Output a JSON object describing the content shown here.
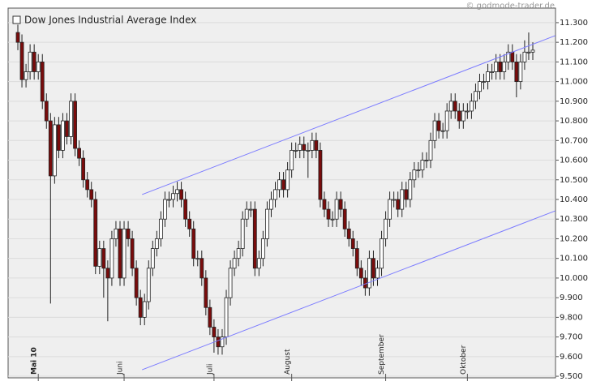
{
  "chart_data": {
    "type": "candlestick",
    "title": "Dow Jones Industrial Average Index",
    "source": "© godmode-trader.de",
    "categories": [
      null,
      null,
      null,
      null,
      null,
      "Mai 10",
      null,
      null,
      null,
      null,
      null,
      null,
      null,
      null,
      null,
      null,
      null,
      null,
      null,
      null,
      null,
      null,
      null,
      null,
      null,
      null,
      "Juni",
      null,
      null,
      null,
      null,
      null,
      null,
      null,
      null,
      null,
      null,
      null,
      null,
      null,
      null,
      null,
      null,
      null,
      null,
      null,
      null,
      null,
      "Juli",
      null,
      null,
      null,
      null,
      null,
      null,
      null,
      null,
      null,
      null,
      null,
      null,
      null,
      null,
      null,
      null,
      null,
      null,
      "August",
      null,
      null,
      null,
      null,
      null,
      null,
      null,
      null,
      null,
      null,
      null,
      null,
      null,
      null,
      null,
      null,
      null,
      null,
      null,
      null,
      null,
      null,
      "September",
      null,
      null,
      null,
      null,
      null,
      null,
      null,
      null,
      null,
      null,
      null,
      null,
      null,
      null,
      null,
      null,
      null,
      null,
      null,
      "Oktober",
      null,
      null,
      null,
      null,
      null,
      null,
      null,
      null,
      null,
      null,
      null,
      null,
      null,
      null,
      null,
      null
    ],
    "open": [
      11250,
      11200,
      11010,
      11050,
      11150,
      11050,
      11100,
      10900,
      10800,
      10520,
      10780,
      10650,
      10800,
      10720,
      10900,
      10660,
      10610,
      10500,
      10450,
      10400,
      10060,
      10150,
      10050,
      10000,
      10200,
      10250,
      10000,
      10250,
      10200,
      10050,
      9900,
      9800,
      9880,
      10050,
      10150,
      10200,
      10300,
      10400,
      10400,
      10430,
      10450,
      10400,
      10300,
      10250,
      10100,
      10100,
      10000,
      9850,
      9750,
      9700,
      9650,
      9700,
      9900,
      10050,
      10100,
      10150,
      10300,
      10350,
      10350,
      10050,
      10100,
      10200,
      10350,
      10400,
      10450,
      10500,
      10450,
      10550,
      10650,
      10650,
      10680,
      10650,
      10650,
      10700,
      10650,
      10400,
      10350,
      10300,
      10300,
      10400,
      10350,
      10250,
      10200,
      10150,
      10050,
      10000,
      9950,
      10100,
      10000,
      10050,
      10200,
      10300,
      10400,
      10400,
      10350,
      10450,
      10400,
      10500,
      10550,
      10550,
      10600,
      10600,
      10700,
      10800,
      10750,
      10750,
      10850,
      10900,
      10850,
      10800,
      10850,
      10850,
      10900,
      10950,
      11000,
      11000,
      11050,
      11050,
      11100,
      11050,
      11100,
      11150,
      11100,
      11000,
      11100,
      11150,
      11150
    ],
    "high": [
      11290,
      11240,
      11090,
      11190,
      11190,
      11140,
      11140,
      10940,
      10840,
      10820,
      10820,
      10840,
      10840,
      10940,
      10940,
      10700,
      10650,
      10540,
      10490,
      10440,
      10190,
      10190,
      10090,
      10240,
      10290,
      10290,
      10290,
      10290,
      10240,
      10090,
      9940,
      9920,
      10090,
      10190,
      10240,
      10340,
      10440,
      10440,
      10470,
      10490,
      10490,
      10440,
      10340,
      10290,
      10140,
      10140,
      10040,
      9890,
      9790,
      9740,
      9740,
      9940,
      10090,
      10140,
      10190,
      10340,
      10390,
      10390,
      10390,
      10140,
      10240,
      10390,
      10440,
      10490,
      10540,
      10540,
      10590,
      10690,
      10690,
      10720,
      10720,
      10690,
      10740,
      10740,
      10690,
      10440,
      10390,
      10340,
      10440,
      10440,
      10390,
      10290,
      10240,
      10190,
      10090,
      10040,
      10140,
      10140,
      10090,
      10240,
      10340,
      10440,
      10440,
      10440,
      10490,
      10490,
      10540,
      10590,
      10590,
      10640,
      10640,
      10740,
      10840,
      10840,
      10790,
      10890,
      10940,
      10940,
      10890,
      10890,
      10890,
      10940,
      10990,
      11040,
      11040,
      11090,
      11090,
      11140,
      11140,
      11140,
      11190,
      11190,
      11140,
      11140,
      11210,
      11250,
      11200
    ],
    "low": [
      11160,
      10970,
      10970,
      11010,
      11010,
      11010,
      10860,
      10760,
      9870,
      10480,
      10610,
      10610,
      10680,
      10680,
      10620,
      10570,
      10460,
      10410,
      10360,
      10020,
      10020,
      9900,
      9780,
      9960,
      10160,
      9960,
      9960,
      10160,
      10010,
      9860,
      9760,
      9760,
      9840,
      10010,
      10110,
      10160,
      10260,
      10360,
      10360,
      10390,
      10360,
      10260,
      10210,
      10060,
      10060,
      9960,
      9810,
      9710,
      9620,
      9610,
      9610,
      9660,
      9860,
      10010,
      10060,
      10110,
      10260,
      10310,
      10010,
      10010,
      10060,
      10160,
      10310,
      10360,
      10410,
      10410,
      10410,
      10510,
      10610,
      10610,
      10610,
      10510,
      10610,
      10610,
      10360,
      10310,
      10260,
      10260,
      10260,
      10310,
      10210,
      10160,
      10110,
      10010,
      9960,
      9910,
      9910,
      9960,
      9960,
      10010,
      10160,
      10260,
      10360,
      10310,
      10310,
      10360,
      10360,
      10460,
      10510,
      10510,
      10560,
      10560,
      10660,
      10710,
      10710,
      10710,
      10810,
      10810,
      10760,
      10760,
      10810,
      10810,
      10860,
      10910,
      10960,
      10960,
      11010,
      11010,
      11010,
      11010,
      11060,
      11060,
      10920,
      10960,
      11060,
      11110,
      11110
    ],
    "close": [
      11200,
      11010,
      11050,
      11150,
      11050,
      11100,
      10900,
      10800,
      10520,
      10780,
      10650,
      10800,
      10720,
      10900,
      10660,
      10610,
      10500,
      10450,
      10400,
      10060,
      10150,
      10050,
      10000,
      10200,
      10250,
      10000,
      10250,
      10200,
      10050,
      9900,
      9800,
      9880,
      10050,
      10150,
      10200,
      10300,
      10400,
      10400,
      10430,
      10450,
      10400,
      10300,
      10250,
      10100,
      10100,
      10000,
      9850,
      9750,
      9700,
      9650,
      9700,
      9900,
      10050,
      10100,
      10150,
      10300,
      10350,
      10350,
      10050,
      10100,
      10200,
      10350,
      10400,
      10450,
      10500,
      10450,
      10550,
      10650,
      10650,
      10680,
      10650,
      10650,
      10700,
      10650,
      10400,
      10350,
      10300,
      10300,
      10400,
      10350,
      10250,
      10200,
      10150,
      10050,
      10000,
      9950,
      10100,
      10000,
      10050,
      10200,
      10300,
      10400,
      10400,
      10350,
      10450,
      10400,
      10500,
      10550,
      10550,
      10600,
      10600,
      10700,
      10800,
      10750,
      10750,
      10850,
      10900,
      10850,
      10800,
      10850,
      10850,
      10900,
      10950,
      11000,
      11000,
      11050,
      11050,
      11100,
      11050,
      11100,
      11150,
      11100,
      11000,
      11100,
      11150,
      11150,
      11160
    ],
    "up_color": "#ffffff",
    "down_color": "#7a0c0c",
    "trendlines": [
      {
        "x": [
          30.4,
          131.5
        ],
        "values": [
          10425,
          11234
        ],
        "color": "#7b7bff"
      },
      {
        "x": [
          30.4,
          131.5
        ],
        "values": [
          9533,
          10342
        ],
        "color": "#7b7bff"
      }
    ],
    "ylim": [
      9492,
      11374
    ],
    "yticks": [
      {
        "value": 9500,
        "label": "9.500"
      },
      {
        "value": 9600,
        "label": "9.600"
      },
      {
        "value": 9700,
        "label": "9.700"
      },
      {
        "value": 9800,
        "label": "9.800"
      },
      {
        "value": 9900,
        "label": "9.900"
      },
      {
        "value": 10000,
        "label": "10.000"
      },
      {
        "value": 10100,
        "label": "10.100"
      },
      {
        "value": 10200,
        "label": "10.200"
      },
      {
        "value": 10300,
        "label": "10.300"
      },
      {
        "value": 10400,
        "label": "10.400"
      },
      {
        "value": 10500,
        "label": "10.500"
      },
      {
        "value": 10600,
        "label": "10.600"
      },
      {
        "value": 10700,
        "label": "10.700"
      },
      {
        "value": 10800,
        "label": "10.800"
      },
      {
        "value": 10900,
        "label": "10.900"
      },
      {
        "value": 11000,
        "label": "11.000"
      },
      {
        "value": 11100,
        "label": "11.100"
      },
      {
        "value": 11200,
        "label": "11.200"
      },
      {
        "value": 11300,
        "label": "11.300"
      }
    ],
    "grid": true
  }
}
